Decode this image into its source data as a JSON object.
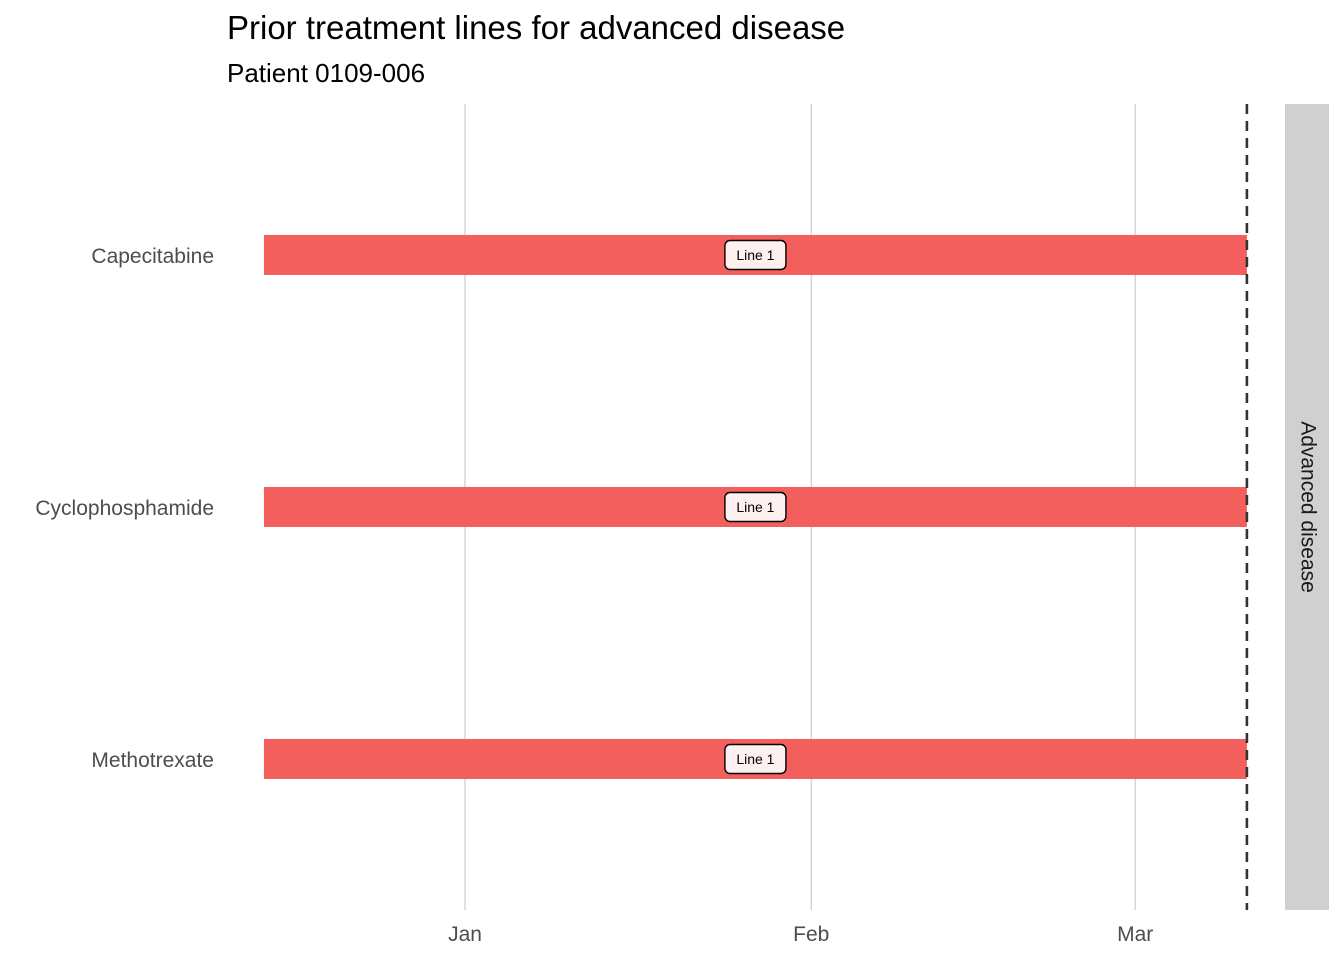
{
  "chart_data": {
    "type": "gantt",
    "title": "Prior treatment lines for advanced disease",
    "subtitle": "Patient 0109-006",
    "facet_label": "Advanced disease",
    "x_axis": {
      "ticks": [
        {
          "label": "Jan",
          "date": "2020-01-01"
        },
        {
          "label": "Feb",
          "date": "2020-02-01"
        },
        {
          "label": "Mar",
          "date": "2020-03-01"
        }
      ],
      "range": [
        "2019-12-12",
        "2020-03-13"
      ]
    },
    "categories": [
      "Capecitabine",
      "Cyclophosphamide",
      "Methotrexate"
    ],
    "bars": [
      {
        "drug": "Capecitabine",
        "start": "2019-12-14",
        "end": "2020-03-11",
        "label": "Line 1"
      },
      {
        "drug": "Cyclophosphamide",
        "start": "2019-12-14",
        "end": "2020-03-11",
        "label": "Line 1"
      },
      {
        "drug": "Methotrexate",
        "start": "2019-12-14",
        "end": "2020-03-11",
        "label": "Line 1"
      }
    ],
    "reference_line": {
      "date": "2020-03-11",
      "style": "dashed"
    },
    "grid": {
      "vertical_major": true,
      "horizontal": false
    },
    "legend": "none",
    "colors": {
      "bar": "#F35F5C",
      "label_fill": "#FFF0F0",
      "grid": "#CCCCCC",
      "strip": "#D0D0D0",
      "reference_line": "#333333"
    }
  }
}
